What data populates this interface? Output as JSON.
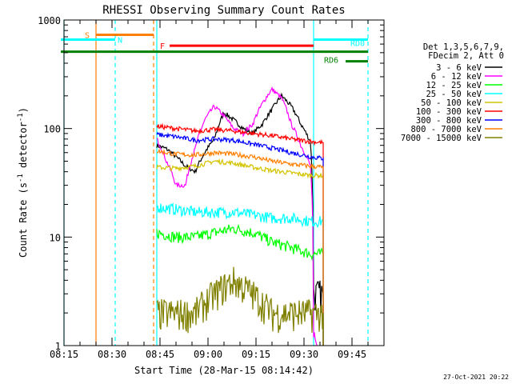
{
  "chart_data": {
    "type": "line",
    "title": "RHESSI Observing Summary Count Rates",
    "xlabel": "Start Time (28-Mar-15 08:14:42)",
    "ylabel": "Count Rate (s",
    "ylabel_sup": "-1",
    "ylabel_tail": " detector",
    "ylabel_sup2": "-1",
    "ylabel_end": ")",
    "y_scale": "log",
    "ylim": [
      1,
      1000
    ],
    "xlim": [
      "08:15",
      "09:55"
    ],
    "x_ticks": [
      "08:15",
      "08:30",
      "08:45",
      "09:00",
      "09:15",
      "09:30",
      "09:45"
    ],
    "y_ticks": [
      {
        "value": 1,
        "label": "1"
      },
      {
        "value": 10,
        "label": "10"
      },
      {
        "value": 100,
        "label": "100"
      },
      {
        "value": 1000,
        "label": "1000"
      }
    ],
    "legend_header": [
      "Det 1,3,5,6,7,9,",
      "FDecim 2, Att 0"
    ],
    "legend_placement": "right",
    "series": [
      {
        "name": "3 - 6 keV",
        "color": "#000000",
        "x": [
          "08:44",
          "08:47",
          "08:50",
          "08:53",
          "08:56",
          "08:59",
          "09:02",
          "09:05",
          "09:08",
          "09:11",
          "09:14",
          "09:17",
          "09:20",
          "09:23",
          "09:26",
          "09:29",
          "09:32",
          "09:33",
          "09:34",
          "09:35",
          "09:36"
        ],
        "values": [
          70,
          65,
          55,
          45,
          40,
          60,
          80,
          140,
          120,
          100,
          90,
          110,
          150,
          200,
          160,
          110,
          75,
          3,
          3,
          3,
          3
        ]
      },
      {
        "name": "6 - 12 keV",
        "color": "#ff00ff",
        "x": [
          "08:44",
          "08:47",
          "08:50",
          "08:53",
          "08:56",
          "08:59",
          "09:02",
          "09:05",
          "09:08",
          "09:11",
          "09:14",
          "09:17",
          "09:20",
          "09:23",
          "09:26",
          "09:29",
          "09:32",
          "09:33",
          "09:34"
        ],
        "values": [
          80,
          50,
          30,
          30,
          65,
          120,
          160,
          130,
          100,
          90,
          110,
          170,
          230,
          190,
          110,
          70,
          45,
          1,
          1
        ]
      },
      {
        "name": "12 - 25 keV",
        "color": "#00ff00",
        "x": [
          "08:44",
          "08:50",
          "08:56",
          "09:02",
          "09:08",
          "09:14",
          "09:20",
          "09:26",
          "09:32",
          "09:36"
        ],
        "values": [
          11,
          10,
          10,
          11,
          12,
          11,
          9,
          8,
          7,
          7
        ]
      },
      {
        "name": "25 - 50 keV",
        "color": "#00ffff",
        "x": [
          "08:44",
          "08:50",
          "08:56",
          "09:02",
          "09:08",
          "09:14",
          "09:20",
          "09:26",
          "09:32",
          "09:36"
        ],
        "values": [
          19,
          18,
          17,
          17,
          17,
          16,
          15,
          15,
          14,
          14
        ]
      },
      {
        "name": "50 - 100 keV",
        "color": "#d4c400",
        "x": [
          "08:44",
          "08:50",
          "08:56",
          "09:02",
          "09:08",
          "09:14",
          "09:20",
          "09:26",
          "09:32",
          "09:36"
        ],
        "values": [
          44,
          43,
          45,
          50,
          48,
          44,
          41,
          39,
          37,
          37
        ]
      },
      {
        "name": "100 - 300 keV",
        "color": "#ff0000",
        "x": [
          "08:44",
          "08:50",
          "08:56",
          "09:02",
          "09:08",
          "09:14",
          "09:20",
          "09:26",
          "09:32",
          "09:36"
        ],
        "values": [
          105,
          100,
          95,
          98,
          95,
          90,
          86,
          80,
          76,
          74
        ]
      },
      {
        "name": "300 - 800 keV",
        "color": "#0000ff",
        "x": [
          "08:44",
          "08:50",
          "08:56",
          "09:02",
          "09:08",
          "09:14",
          "09:20",
          "09:26",
          "09:32",
          "09:36"
        ],
        "values": [
          88,
          84,
          78,
          80,
          78,
          72,
          66,
          60,
          55,
          53
        ]
      },
      {
        "name": "800 - 7000 keV",
        "color": "#ff7f00",
        "x": [
          "08:44",
          "08:50",
          "08:56",
          "09:02",
          "09:08",
          "09:14",
          "09:20",
          "09:26",
          "09:32",
          "09:36"
        ],
        "values": [
          62,
          58,
          57,
          60,
          58,
          55,
          50,
          47,
          45,
          44
        ]
      },
      {
        "name": "7000 - 15000 keV",
        "color": "#808000",
        "x": [
          "08:44",
          "08:50",
          "08:56",
          "09:02",
          "09:08",
          "09:14",
          "09:20",
          "09:26",
          "09:32",
          "09:36"
        ],
        "values": [
          2,
          2,
          2,
          3,
          4,
          3,
          2,
          2,
          2,
          2
        ]
      }
    ],
    "events": [
      {
        "label": "S",
        "color": "#ff7f00",
        "start": "08:25",
        "end": "08:43",
        "level": 730
      },
      {
        "label": "N",
        "color": "#00ffff",
        "start": "08:14",
        "end": "08:31",
        "level": 660
      },
      {
        "label": "F",
        "color": "#ff0000",
        "start": "08:48",
        "end": "09:33",
        "level": 580
      },
      {
        "label": "RD0",
        "color": "#00ffff",
        "start": "09:33",
        "end": "09:50",
        "level": 660
      },
      {
        "label": "RD6",
        "color": "#008000",
        "start": "08:14",
        "end": "09:50",
        "level": 510
      }
    ],
    "event_labels": {
      "S": "S",
      "N": "N",
      "F": "F",
      "RD0": "RD0",
      "RD6": "RD6"
    },
    "vertical_markers": [
      {
        "time": "08:15",
        "color": "#00ffff",
        "style": "solid"
      },
      {
        "time": "08:25",
        "color": "#ff7f00",
        "style": "solid"
      },
      {
        "time": "08:31",
        "color": "#00ffff",
        "style": "dashed"
      },
      {
        "time": "08:43",
        "color": "#ff7f00",
        "style": "dashed"
      },
      {
        "time": "08:44",
        "color": "#00ffff",
        "style": "solid"
      },
      {
        "time": "09:33",
        "color": "#00ffff",
        "style": "solid"
      },
      {
        "time": "09:50",
        "color": "#00ffff",
        "style": "dashed"
      }
    ],
    "timestamp": "27-Oct-2021 20:22"
  }
}
